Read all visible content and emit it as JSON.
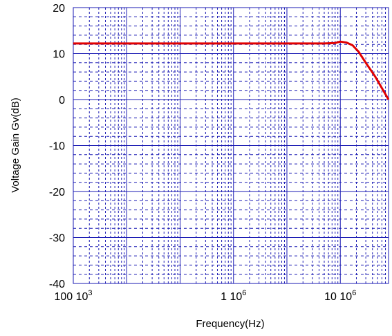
{
  "chart_data": {
    "type": "line",
    "title": "",
    "xlabel": "Frequency(Hz)",
    "ylabel": "Voltage Gain  Gv(dB)",
    "x_scale": "log",
    "xlim": [
      100,
      80000000
    ],
    "ylim": [
      -40,
      20
    ],
    "y_ticks": [
      {
        "value": 20,
        "label": "20"
      },
      {
        "value": 10,
        "label": "10"
      },
      {
        "value": 0,
        "label": "0"
      },
      {
        "value": -10,
        "label": "-10"
      },
      {
        "value": -20,
        "label": "-20"
      },
      {
        "value": -30,
        "label": "-30"
      },
      {
        "value": -40,
        "label": "-40"
      }
    ],
    "x_ticks": [
      {
        "value": 100,
        "label": "100 10",
        "exp": "3"
      },
      {
        "value": 100000,
        "label": "1 10",
        "exp": "6"
      },
      {
        "value": 10000000,
        "label": "10 10",
        "exp": "6"
      }
    ],
    "grid": true,
    "line_color": "#e00000",
    "grid_color": "#1a1ab3",
    "series": [
      {
        "x": [
          100,
          1000,
          10000,
          100000,
          1000000,
          5000000,
          8000000,
          10000000,
          13000000,
          17000000,
          22000000,
          30000000,
          45000000,
          80000000
        ],
        "y": [
          12.2,
          12.2,
          12.2,
          12.2,
          12.2,
          12.2,
          12.3,
          12.6,
          12.4,
          11.8,
          10.4,
          8.0,
          5.0,
          0.0
        ]
      }
    ]
  }
}
